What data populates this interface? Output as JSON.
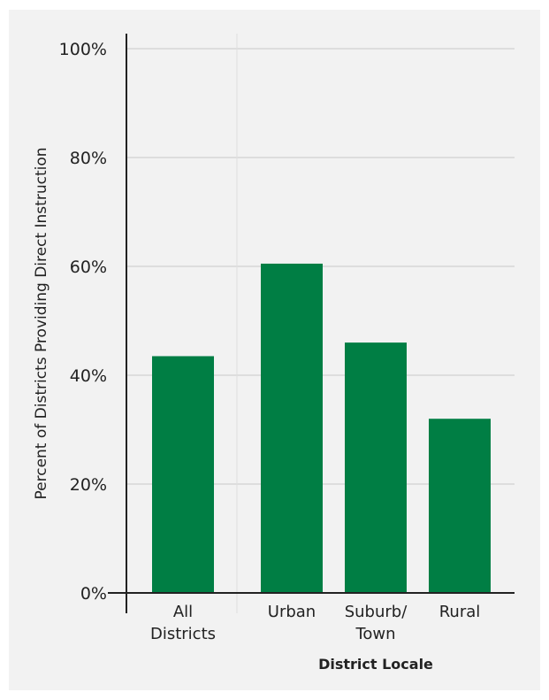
{
  "colors": {
    "bar": "#007e44",
    "panel_background": "#f2f2f2",
    "gridline": "#c8c8c8",
    "axis": "#222222"
  },
  "chart_data": {
    "type": "bar",
    "categories": [
      [
        "All",
        "Districts"
      ],
      [
        "Urban"
      ],
      [
        "Suburb/",
        "Town"
      ],
      [
        "Rural"
      ]
    ],
    "values": [
      43.5,
      60.5,
      46,
      32
    ],
    "yticks": [
      "0%",
      "20%",
      "40%",
      "60%",
      "80%",
      "100%"
    ],
    "ylim": [
      0,
      100
    ],
    "xlabel": "District Locale",
    "ylabel": "Percent of Districts Providing Direct Instruction",
    "grid": true,
    "title": ""
  }
}
